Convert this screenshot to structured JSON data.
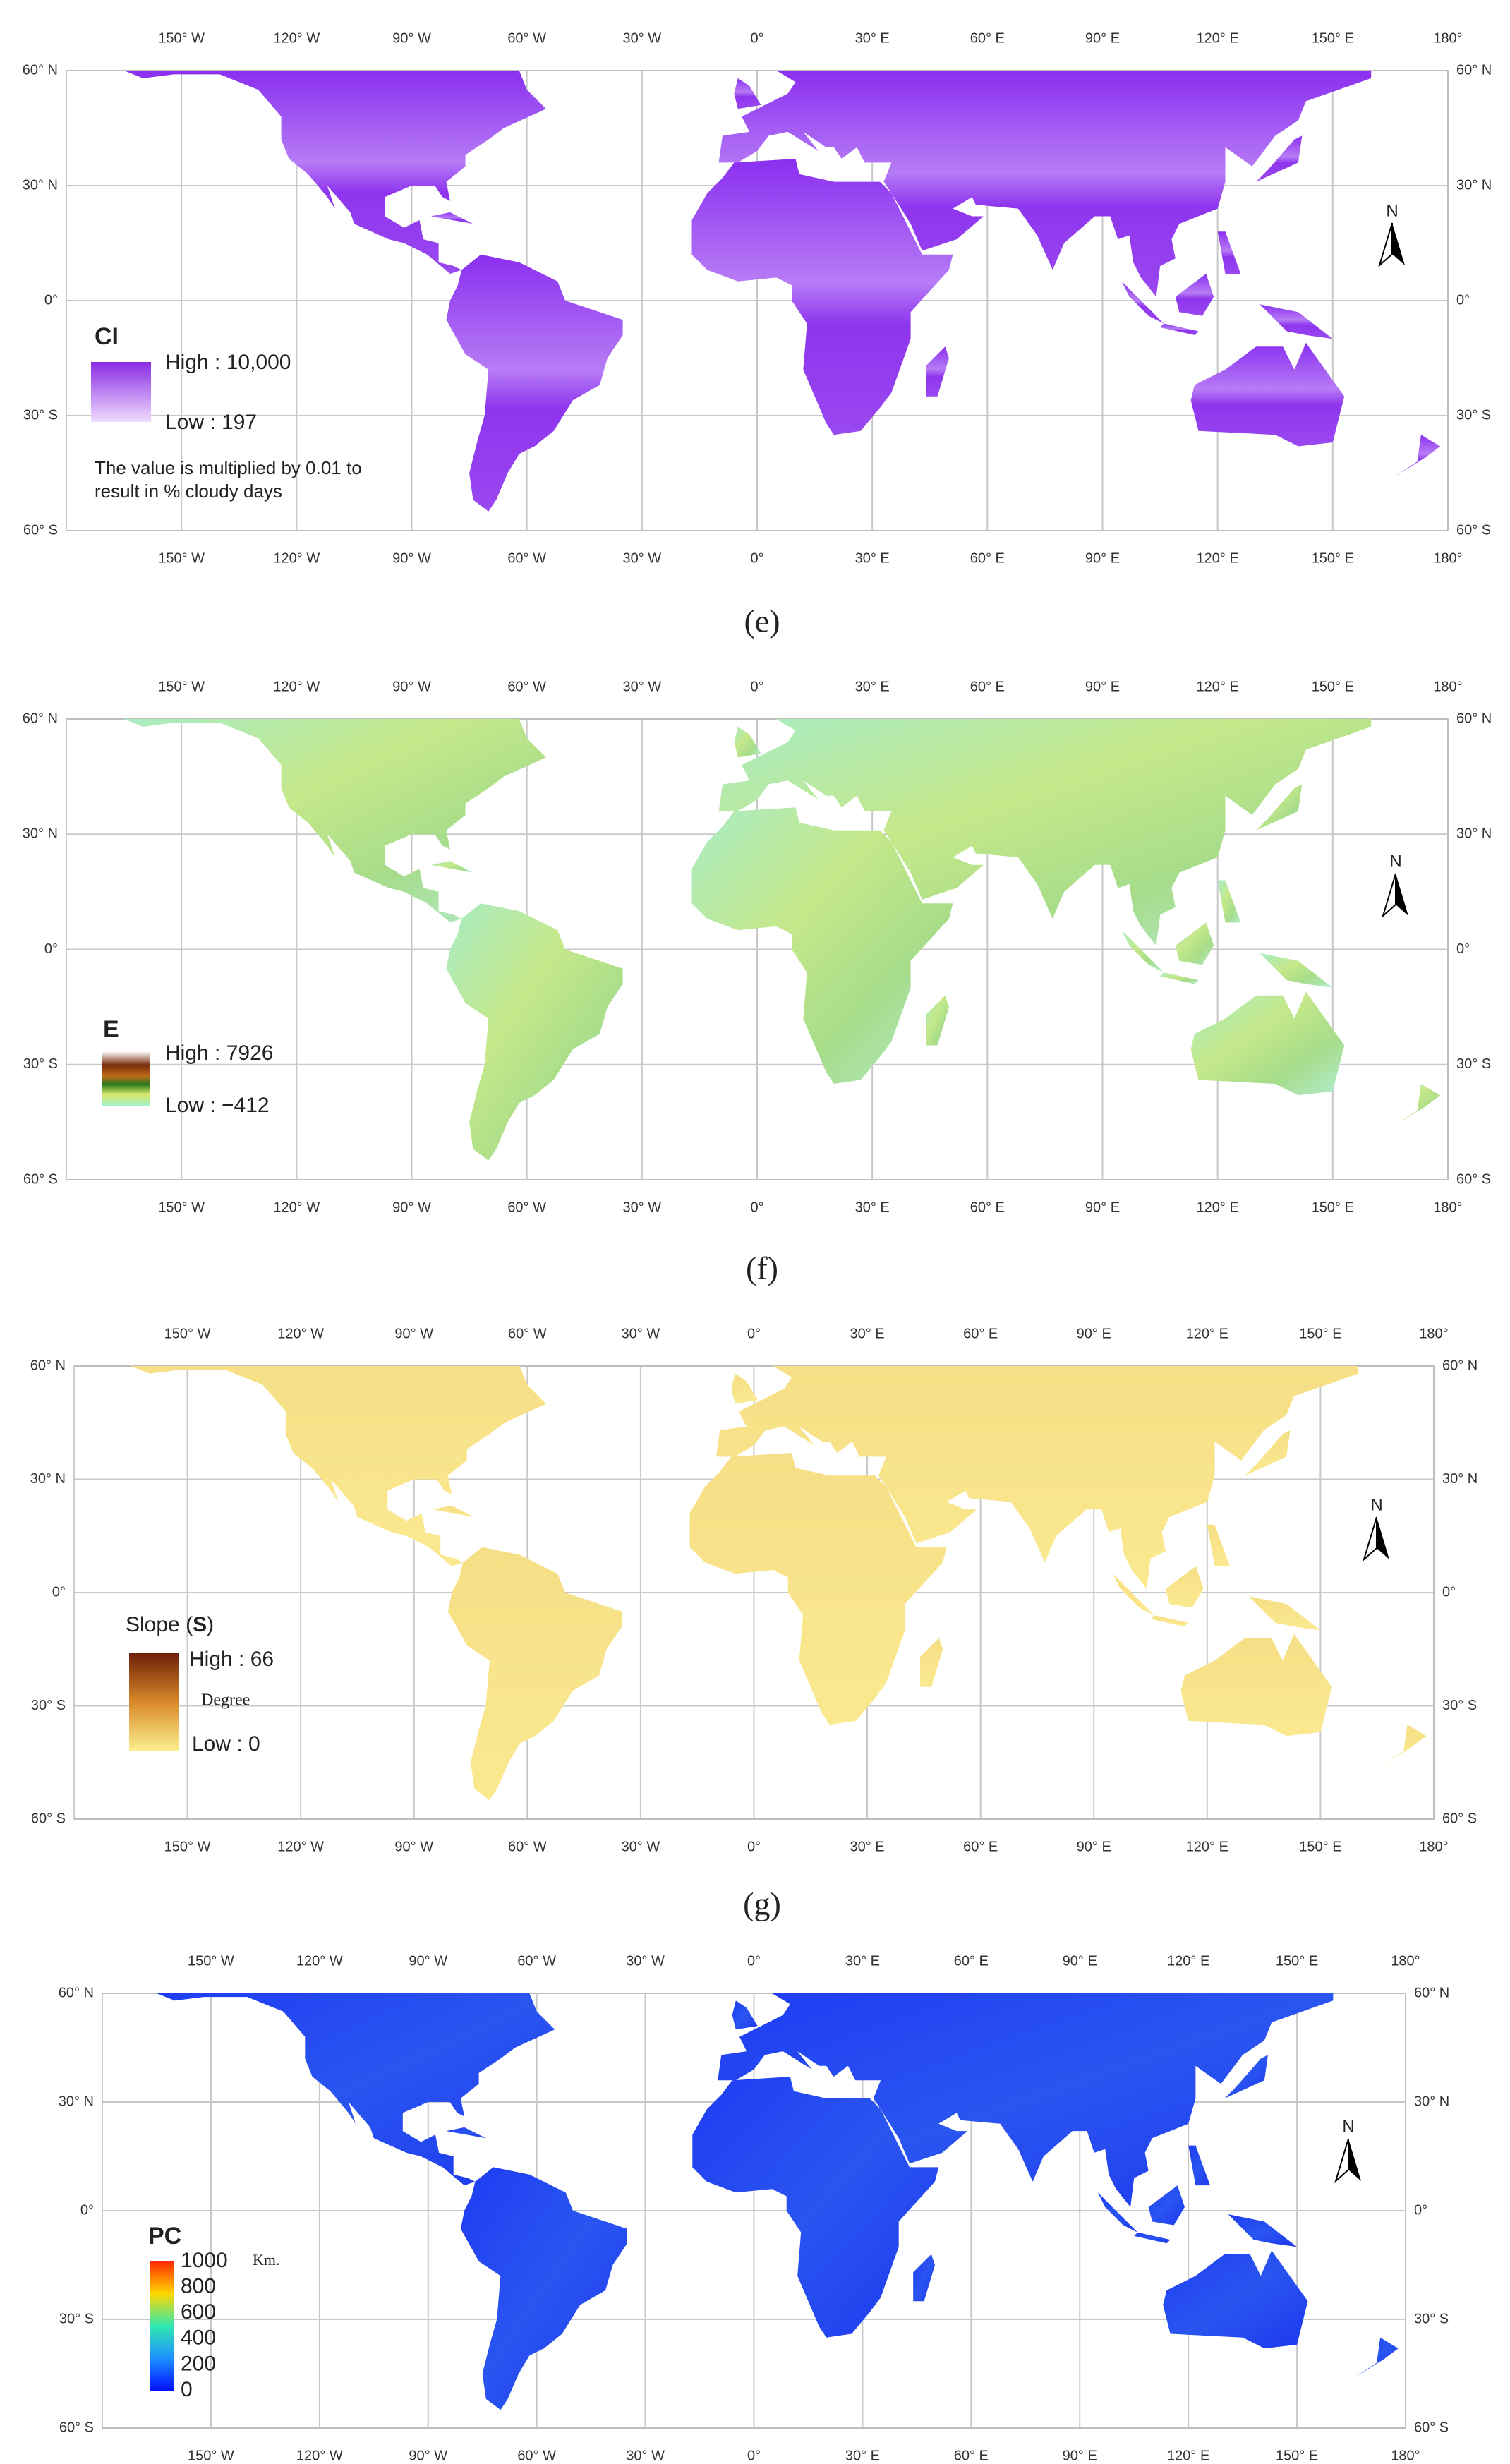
{
  "lon_labels": [
    "150° W",
    "120° W",
    "90° W",
    "60° W",
    "30° W",
    "0°",
    "30° E",
    "60° E",
    "90° E",
    "120° E",
    "150° E",
    "180°"
  ],
  "lat_labels": [
    "60° N",
    "30° N",
    "0°",
    "30° S",
    "60° S"
  ],
  "north": "N",
  "panels": [
    {
      "caption": "(e)",
      "legend": {
        "title": "CI",
        "high": "High : 10,000",
        "low": "Low : 197",
        "note": [
          "The value is multiplied by 0.01 to",
          "result in % cloudy days"
        ]
      }
    },
    {
      "caption": "(f)",
      "legend": {
        "title": "E",
        "high": "High : 7926",
        "low": "Low : −412"
      }
    },
    {
      "caption": "(g)",
      "legend": {
        "title": [
          "Slope (",
          "S",
          ")"
        ],
        "high": "High : 66",
        "unit": "Degree",
        "low": "Low : 0"
      }
    },
    {
      "legend": {
        "title": "PC",
        "scale": [
          1000,
          800,
          600,
          400,
          200,
          0
        ],
        "unit": "Km."
      }
    }
  ]
}
